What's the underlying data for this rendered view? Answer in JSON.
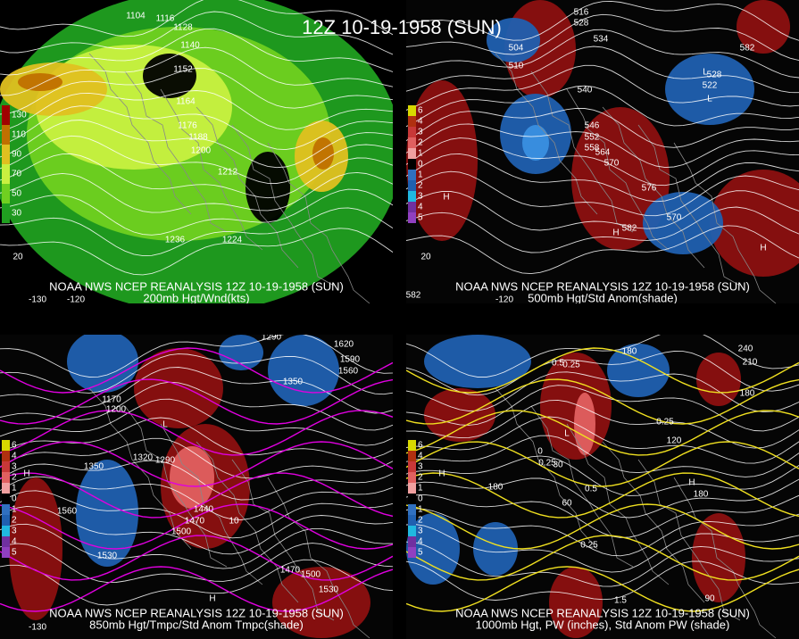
{
  "title": "12Z 10-19-1958 (SUN)",
  "panels": [
    {
      "source": "NOAA NWS NCEP REANALYSIS 12Z 10-19-1958 (SUN)",
      "field": "200mb Hgt/Wnd(kts)",
      "legend": [
        "130",
        "110",
        "90",
        "70",
        "50",
        "30"
      ],
      "labels": [
        "1104",
        "1116",
        "1128",
        "1140",
        "1152",
        "1164",
        "1176",
        "1188",
        "1200",
        "1212",
        "1236",
        "1224",
        "-130",
        "-120",
        "20"
      ]
    },
    {
      "source": "NOAA NWS NCEP REANALYSIS 12Z 10-19-1958 (SUN)",
      "field": "500mb Hgt/Std Anom(shade)",
      "legend": [
        "6",
        "4",
        "3",
        "2",
        "1",
        "0",
        "1",
        "2",
        "3",
        "4",
        "5"
      ],
      "labels": [
        "516",
        "528",
        "534",
        "504",
        "510",
        "540",
        "546",
        "552",
        "558",
        "564",
        "570",
        "576",
        "582",
        "528",
        "522",
        "570",
        "582",
        "582",
        "H",
        "H",
        "H",
        "L",
        "L",
        "-120",
        "20"
      ]
    },
    {
      "source": "NOAA NWS NCEP REANALYSIS 12Z 10-19-1958 (SUN)",
      "field": "850mb Hgt/Tmpc/Std Anom Tmpc(shade)",
      "legend": [
        "6",
        "4",
        "3",
        "2",
        "1",
        "0",
        "1",
        "2",
        "3",
        "4",
        "5"
      ],
      "labels": [
        "1620",
        "1590",
        "1560",
        "1350",
        "1170",
        "1200",
        "1320",
        "1290",
        "1350",
        "1440",
        "1470",
        "1500",
        "1560",
        "1530",
        "1470",
        "1500",
        "1530",
        "10",
        "1290",
        "H",
        "H",
        "L",
        "-130"
      ]
    },
    {
      "source": "NOAA NWS NCEP REANALYSIS 12Z 10-19-1958 (SUN)",
      "field": "1000mb Hgt, PW (inches), Std Anom PW (shade)",
      "legend": [
        "6",
        "4",
        "3",
        "2",
        "1",
        "0",
        "1",
        "2",
        "3",
        "4",
        "5"
      ],
      "labels": [
        "180",
        "240",
        "210",
        "180",
        "0.25",
        "0.5",
        "120",
        "0.25",
        "0.25",
        "0.5",
        "60",
        "0.25",
        "1.5",
        "90",
        "180",
        "180",
        "H",
        "H",
        "L",
        "0",
        "30"
      ]
    }
  ]
}
